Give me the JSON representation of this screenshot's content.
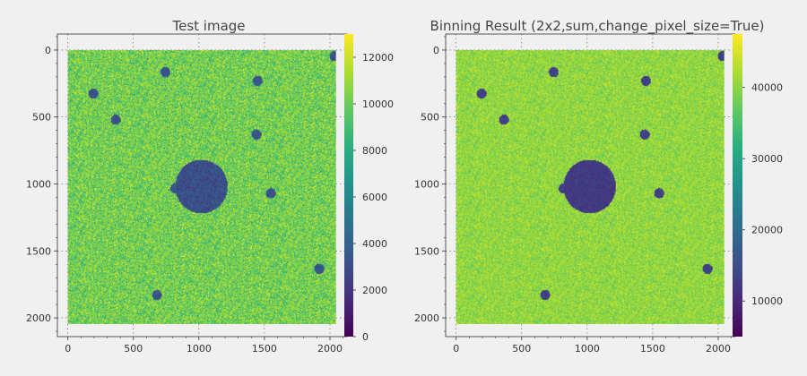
{
  "chart_data": [
    {
      "type": "heatmap",
      "title": "Test image",
      "xlabel": "",
      "ylabel": "",
      "xlim": [
        -80,
        2130
      ],
      "ylim": [
        2140,
        -120
      ],
      "x_ticks": [
        0,
        500,
        1000,
        1500,
        2000
      ],
      "y_ticks": [
        0,
        500,
        1000,
        1500,
        2000
      ],
      "colorbar": {
        "min": 0,
        "max": 13000,
        "ticks": [
          0,
          2000,
          4000,
          6000,
          8000,
          10000,
          12000
        ],
        "colormap": "viridis"
      },
      "grid": true,
      "image": {
        "extent": [
          0,
          2048,
          2048,
          0
        ],
        "background_level": 10200,
        "background_noise": 1800,
        "features": [
          {
            "shape": "disk",
            "x": 1020,
            "y": 1020,
            "r": 200,
            "level": 3200
          },
          {
            "shape": "disk",
            "x": 745,
            "y": 165,
            "r": 38,
            "level": 3400
          },
          {
            "shape": "disk",
            "x": 195,
            "y": 325,
            "r": 38,
            "level": 3400
          },
          {
            "shape": "disk",
            "x": 1450,
            "y": 230,
            "r": 38,
            "level": 3400
          },
          {
            "shape": "disk",
            "x": 2035,
            "y": 45,
            "r": 38,
            "level": 3400
          },
          {
            "shape": "disk",
            "x": 365,
            "y": 520,
            "r": 38,
            "level": 3400
          },
          {
            "shape": "disk",
            "x": 1440,
            "y": 630,
            "r": 38,
            "level": 3400
          },
          {
            "shape": "disk",
            "x": 820,
            "y": 1035,
            "r": 38,
            "level": 3400
          },
          {
            "shape": "disk",
            "x": 1550,
            "y": 1070,
            "r": 38,
            "level": 3400
          },
          {
            "shape": "disk",
            "x": 1920,
            "y": 1635,
            "r": 38,
            "level": 3400
          },
          {
            "shape": "disk",
            "x": 680,
            "y": 1830,
            "r": 38,
            "level": 3400
          }
        ]
      }
    },
    {
      "type": "heatmap",
      "title": "Binning Result (2x2,sum,change_pixel_size=True)",
      "xlabel": "",
      "ylabel": "",
      "xlim": [
        -80,
        2130
      ],
      "ylim": [
        2140,
        -120
      ],
      "x_ticks": [
        0,
        500,
        1000,
        1500,
        2000
      ],
      "y_ticks": [
        0,
        500,
        1000,
        1500,
        2000
      ],
      "colorbar": {
        "min": 5000,
        "max": 47500,
        "ticks": [
          10000,
          20000,
          30000,
          40000
        ],
        "colormap": "viridis"
      },
      "grid": true,
      "image": {
        "extent": [
          0,
          2048,
          2048,
          0
        ],
        "background_level": 40500,
        "background_noise": 3600,
        "features": [
          {
            "shape": "disk",
            "x": 1020,
            "y": 1020,
            "r": 200,
            "level": 12500
          },
          {
            "shape": "disk",
            "x": 745,
            "y": 165,
            "r": 38,
            "level": 13500
          },
          {
            "shape": "disk",
            "x": 195,
            "y": 325,
            "r": 38,
            "level": 13500
          },
          {
            "shape": "disk",
            "x": 1450,
            "y": 230,
            "r": 38,
            "level": 13500
          },
          {
            "shape": "disk",
            "x": 2035,
            "y": 45,
            "r": 38,
            "level": 13500
          },
          {
            "shape": "disk",
            "x": 365,
            "y": 520,
            "r": 38,
            "level": 13500
          },
          {
            "shape": "disk",
            "x": 1440,
            "y": 630,
            "r": 38,
            "level": 13500
          },
          {
            "shape": "disk",
            "x": 820,
            "y": 1035,
            "r": 38,
            "level": 13500
          },
          {
            "shape": "disk",
            "x": 1550,
            "y": 1070,
            "r": 38,
            "level": 13500
          },
          {
            "shape": "disk",
            "x": 1920,
            "y": 1635,
            "r": 38,
            "level": 13500
          },
          {
            "shape": "disk",
            "x": 680,
            "y": 1830,
            "r": 38,
            "level": 13500
          }
        ]
      }
    }
  ]
}
